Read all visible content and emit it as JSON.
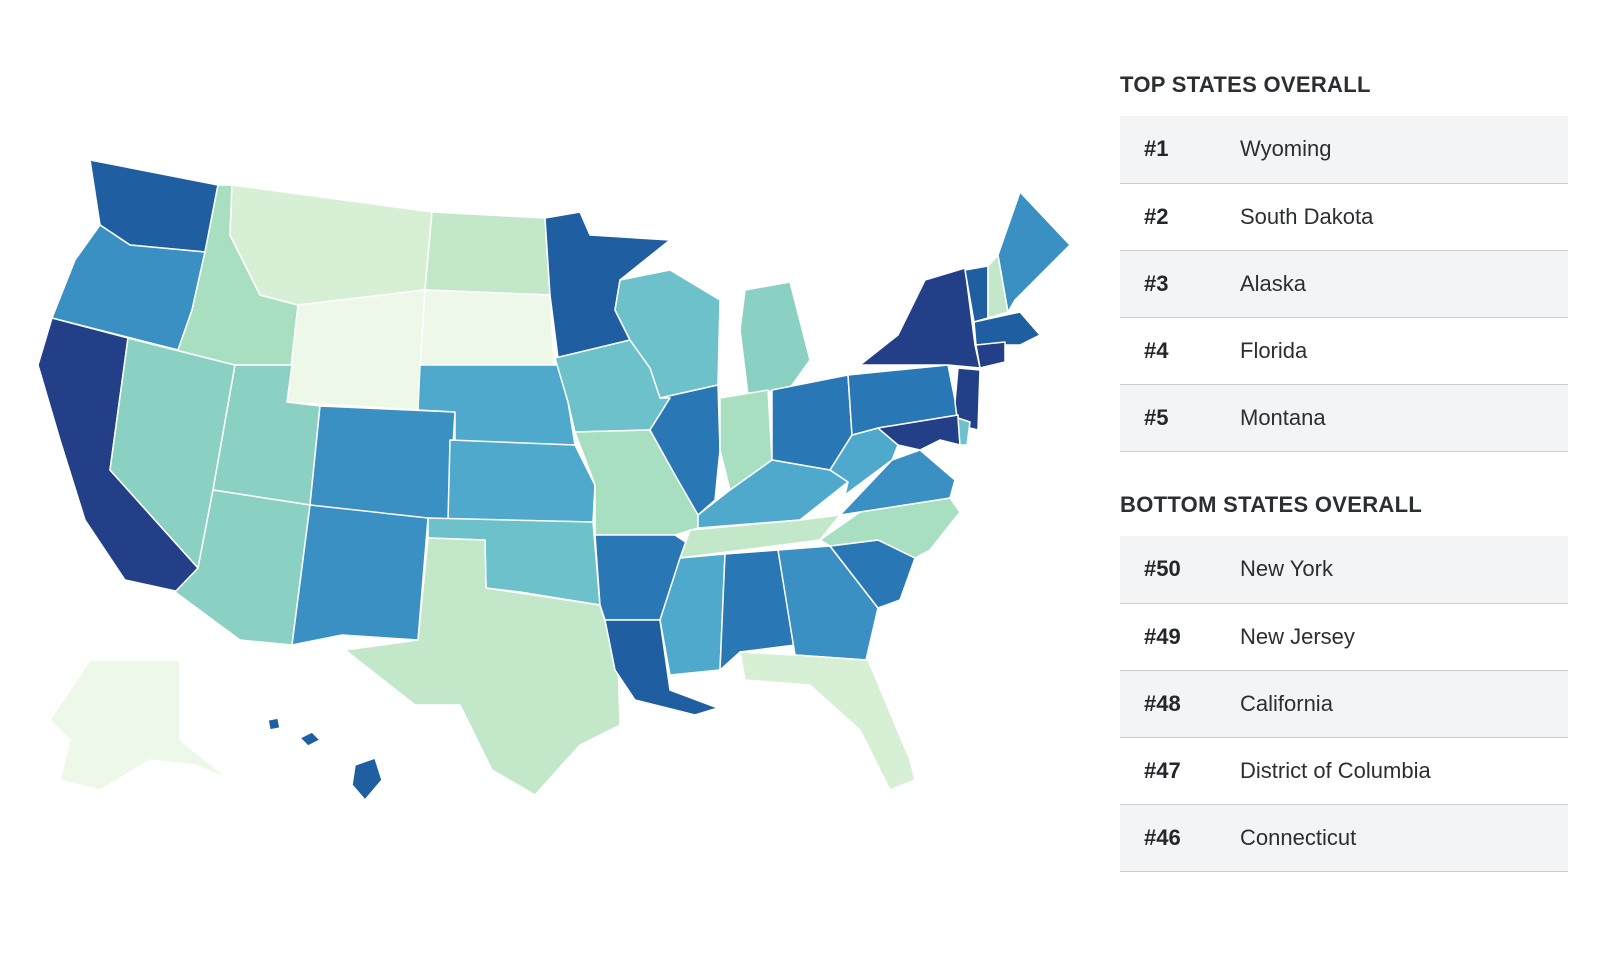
{
  "colors": {
    "scale": [
      "#eef8e9",
      "#d7efd4",
      "#c2e8c9",
      "#a8dfc1",
      "#8ad1c3",
      "#6dc1ca",
      "#4fa9cc",
      "#3a90c3",
      "#2a77b5",
      "#1f5fa1",
      "#223f88"
    ]
  },
  "map": {
    "states": [
      {
        "name": "Washington",
        "icon": "state-shape",
        "shade": 9
      },
      {
        "name": "Oregon",
        "icon": "state-shape",
        "shade": 7
      },
      {
        "name": "California",
        "icon": "state-shape",
        "shade": 10
      },
      {
        "name": "Nevada",
        "icon": "state-shape",
        "shade": 4
      },
      {
        "name": "Idaho",
        "icon": "state-shape",
        "shade": 3
      },
      {
        "name": "Montana",
        "icon": "state-shape",
        "shade": 1
      },
      {
        "name": "Wyoming",
        "icon": "state-shape",
        "shade": 0
      },
      {
        "name": "Utah",
        "icon": "state-shape",
        "shade": 4
      },
      {
        "name": "Arizona",
        "icon": "state-shape",
        "shade": 4
      },
      {
        "name": "Colorado",
        "icon": "state-shape",
        "shade": 7
      },
      {
        "name": "New Mexico",
        "icon": "state-shape",
        "shade": 7
      },
      {
        "name": "North Dakota",
        "icon": "state-shape",
        "shade": 2
      },
      {
        "name": "South Dakota",
        "icon": "state-shape",
        "shade": 0
      },
      {
        "name": "Nebraska",
        "icon": "state-shape",
        "shade": 6
      },
      {
        "name": "Kansas",
        "icon": "state-shape",
        "shade": 6
      },
      {
        "name": "Oklahoma",
        "icon": "state-shape",
        "shade": 5
      },
      {
        "name": "Texas",
        "icon": "state-shape",
        "shade": 2
      },
      {
        "name": "Minnesota",
        "icon": "state-shape",
        "shade": 9
      },
      {
        "name": "Iowa",
        "icon": "state-shape",
        "shade": 5
      },
      {
        "name": "Missouri",
        "icon": "state-shape",
        "shade": 3
      },
      {
        "name": "Arkansas",
        "icon": "state-shape",
        "shade": 8
      },
      {
        "name": "Louisiana",
        "icon": "state-shape",
        "shade": 9
      },
      {
        "name": "Wisconsin",
        "icon": "state-shape",
        "shade": 5
      },
      {
        "name": "Illinois",
        "icon": "state-shape",
        "shade": 8
      },
      {
        "name": "Michigan",
        "icon": "state-shape",
        "shade": 4
      },
      {
        "name": "Indiana",
        "icon": "state-shape",
        "shade": 3
      },
      {
        "name": "Ohio",
        "icon": "state-shape",
        "shade": 8
      },
      {
        "name": "Kentucky",
        "icon": "state-shape",
        "shade": 6
      },
      {
        "name": "Tennessee",
        "icon": "state-shape",
        "shade": 2
      },
      {
        "name": "Mississippi",
        "icon": "state-shape",
        "shade": 6
      },
      {
        "name": "Alabama",
        "icon": "state-shape",
        "shade": 8
      },
      {
        "name": "Georgia",
        "icon": "state-shape",
        "shade": 7
      },
      {
        "name": "Florida",
        "icon": "state-shape",
        "shade": 1
      },
      {
        "name": "South Carolina",
        "icon": "state-shape",
        "shade": 8
      },
      {
        "name": "North Carolina",
        "icon": "state-shape",
        "shade": 3
      },
      {
        "name": "Virginia",
        "icon": "state-shape",
        "shade": 7
      },
      {
        "name": "West Virginia",
        "icon": "state-shape",
        "shade": 6
      },
      {
        "name": "Pennsylvania",
        "icon": "state-shape",
        "shade": 8
      },
      {
        "name": "New York",
        "icon": "state-shape",
        "shade": 10
      },
      {
        "name": "Vermont",
        "icon": "state-shape",
        "shade": 9
      },
      {
        "name": "New Hampshire",
        "icon": "state-shape",
        "shade": 2
      },
      {
        "name": "Maine",
        "icon": "state-shape",
        "shade": 7
      },
      {
        "name": "Massachusetts",
        "icon": "state-shape",
        "shade": 9
      },
      {
        "name": "Connecticut",
        "icon": "state-shape",
        "shade": 10
      },
      {
        "name": "New Jersey",
        "icon": "state-shape",
        "shade": 10
      },
      {
        "name": "Maryland",
        "icon": "state-shape",
        "shade": 10
      },
      {
        "name": "Delaware",
        "icon": "state-shape",
        "shade": 5
      },
      {
        "name": "Alaska",
        "icon": "state-shape",
        "shade": 0
      },
      {
        "name": "Hawaii",
        "icon": "state-shape",
        "shade": 9
      }
    ]
  },
  "top": {
    "heading": "TOP STATES OVERALL",
    "rows": [
      {
        "rank": "#1",
        "state": "Wyoming"
      },
      {
        "rank": "#2",
        "state": "South Dakota"
      },
      {
        "rank": "#3",
        "state": "Alaska"
      },
      {
        "rank": "#4",
        "state": "Florida"
      },
      {
        "rank": "#5",
        "state": "Montana"
      }
    ]
  },
  "bottom": {
    "heading": "BOTTOM STATES OVERALL",
    "rows": [
      {
        "rank": "#50",
        "state": "New York"
      },
      {
        "rank": "#49",
        "state": "New Jersey"
      },
      {
        "rank": "#48",
        "state": "California"
      },
      {
        "rank": "#47",
        "state": "District of Columbia"
      },
      {
        "rank": "#46",
        "state": "Connecticut"
      }
    ]
  }
}
